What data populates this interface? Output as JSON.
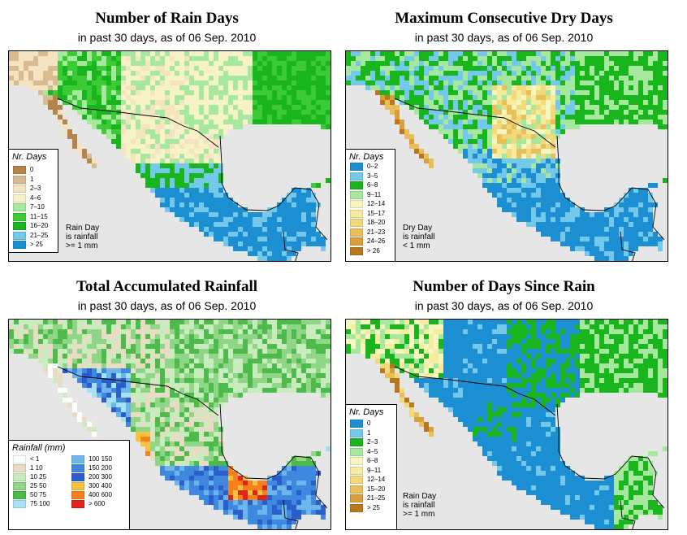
{
  "panels": {
    "rain_days": {
      "title": "Number of Rain Days",
      "subtitle": "in past 30 days, as of  06 Sep. 2010",
      "legend_title": "Nr. Days",
      "legend": [
        {
          "label": "0",
          "color": "#b5844a"
        },
        {
          "label": "1",
          "color": "#d8bb90"
        },
        {
          "label": "2–3",
          "color": "#f4e4c1"
        },
        {
          "label": "4–6",
          "color": "#f7f2c8"
        },
        {
          "label": "7–10",
          "color": "#a6e89d"
        },
        {
          "label": "11–15",
          "color": "#3ccb37"
        },
        {
          "label": "16–20",
          "color": "#19b51c"
        },
        {
          "label": "21–25",
          "color": "#74c9ea"
        },
        {
          "label": "> 25",
          "color": "#1c8fd3"
        }
      ],
      "note": [
        "Rain Day",
        "is rainfall",
        ">= 1 mm"
      ]
    },
    "dry_days": {
      "title": "Maximum Consecutive Dry Days",
      "subtitle": "in past 30 days, as of  06 Sep. 2010",
      "legend_title": "Nr. Days",
      "legend": [
        {
          "label": "0–2",
          "color": "#1c8fd3"
        },
        {
          "label": "3–5",
          "color": "#74c9ea"
        },
        {
          "label": "6–8",
          "color": "#19b51c"
        },
        {
          "label": "9–11",
          "color": "#a6e89d"
        },
        {
          "label": "12–14",
          "color": "#f7f5c0"
        },
        {
          "label": "15–17",
          "color": "#f6eca0"
        },
        {
          "label": "18–20",
          "color": "#f2d97b"
        },
        {
          "label": "21–23",
          "color": "#e8bf58"
        },
        {
          "label": "24–26",
          "color": "#d99f3a"
        },
        {
          "label": "> 26",
          "color": "#b9781d"
        }
      ],
      "note": [
        "Dry Day",
        "is rainfall",
        "< 1 mm"
      ]
    },
    "total_rain": {
      "title": "Total Accumulated Rainfall",
      "subtitle": "in past 30 days, as of  06 Sep. 2010",
      "legend_title": "Rainfall (mm)",
      "legend": [
        {
          "label": "< 1",
          "color": "#ffffff"
        },
        {
          "label": "1   10",
          "color": "#eadcc4"
        },
        {
          "label": "10   25",
          "color": "#c8ecbd"
        },
        {
          "label": "25   50",
          "color": "#8fd787"
        },
        {
          "label": "50   75",
          "color": "#4cbb4a"
        },
        {
          "label": "75   100",
          "color": "#a6e2f2"
        },
        {
          "label": "100   150",
          "color": "#6cb6ec"
        },
        {
          "label": "150   200",
          "color": "#3f88e0"
        },
        {
          "label": "200   300",
          "color": "#2b5ecb"
        },
        {
          "label": "300   400",
          "color": "#f9c23c"
        },
        {
          "label": "400   600",
          "color": "#f4811c"
        },
        {
          "label": "> 600",
          "color": "#e3231a"
        }
      ]
    },
    "since_rain": {
      "title": "Number of Days Since Rain",
      "subtitle": "in past 30 days, as of  06 Sep. 2010",
      "legend_title": "Nr. Days",
      "legend": [
        {
          "label": "0",
          "color": "#1c8fd3"
        },
        {
          "label": "1",
          "color": "#74c9ea"
        },
        {
          "label": "2–3",
          "color": "#19b51c"
        },
        {
          "label": "4–5",
          "color": "#a6e89d"
        },
        {
          "label": "6–8",
          "color": "#f7f5c0"
        },
        {
          "label": "9–11",
          "color": "#f6eca0"
        },
        {
          "label": "12–14",
          "color": "#f2d97b"
        },
        {
          "label": "15–20",
          "color": "#e8bf58"
        },
        {
          "label": "21–25",
          "color": "#d99f3a"
        },
        {
          "label": "> 25",
          "color": "#b9781d"
        }
      ],
      "note": [
        "Rain Day",
        "is rainfall",
        ">= 1 mm"
      ]
    }
  }
}
